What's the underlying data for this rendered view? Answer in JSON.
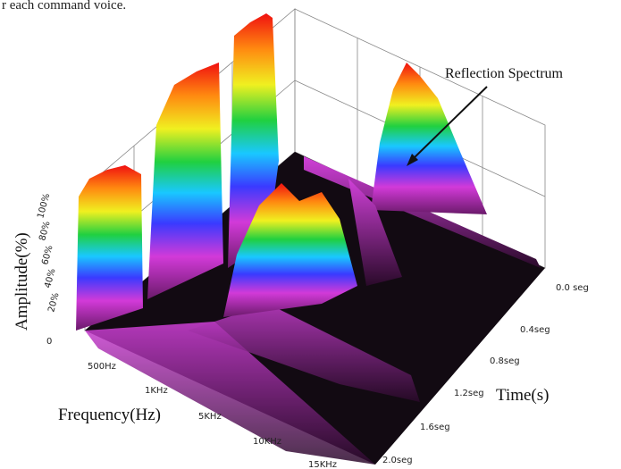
{
  "caption_fragment": "r each command voice.",
  "annotation": "Reflection Spectrum",
  "axes": {
    "amplitude": {
      "label": "Amplitude(%)",
      "ticks": [
        "100%",
        "80%",
        "60%",
        "40%",
        "20%",
        "0"
      ]
    },
    "frequency": {
      "label": "Frequency(Hz)",
      "ticks": [
        "500Hz",
        "1KHz",
        "5KHz",
        "10KHz",
        "15KHz"
      ]
    },
    "time": {
      "label": "Time(s)",
      "ticks": [
        "0.0 seg",
        "0.4seg",
        "0.8seg",
        "1.2seg",
        "1.6seg",
        "2.0seg"
      ]
    }
  }
}
